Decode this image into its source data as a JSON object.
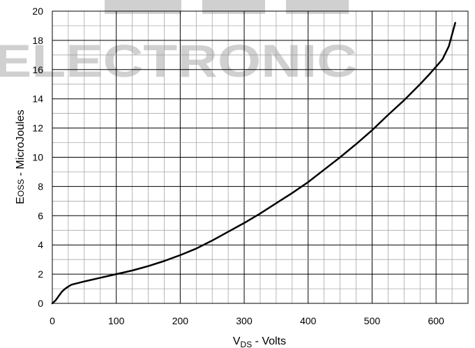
{
  "watermark": {
    "text": "ELECTRONIC",
    "color": "#d0d0d0"
  },
  "chart_data": {
    "type": "line",
    "title": "",
    "xlabel": {
      "main": "V",
      "sub": "DS",
      "suffix": " - Volts"
    },
    "ylabel": {
      "main": "E",
      "sub": "OSS",
      "suffix": " - MicroJoules"
    },
    "xlim": [
      0,
      650
    ],
    "ylim": [
      0,
      20
    ],
    "xticks": [
      0,
      100,
      200,
      300,
      400,
      500,
      600
    ],
    "yticks": [
      0,
      2,
      4,
      6,
      8,
      10,
      12,
      14,
      16,
      18,
      20
    ],
    "grid": true,
    "grid_minor_x": 25,
    "grid_minor_y": 1,
    "legend": "none",
    "line_color": "#000000",
    "series": [
      {
        "x": [
          0,
          5,
          10,
          15,
          20,
          25,
          30,
          50,
          75,
          100,
          125,
          150,
          175,
          200,
          225,
          250,
          275,
          300,
          325,
          350,
          375,
          400,
          425,
          450,
          475,
          500,
          525,
          550,
          575,
          590,
          600,
          610,
          620,
          625,
          630
        ],
        "values": [
          0,
          0.2,
          0.5,
          0.8,
          1.0,
          1.15,
          1.28,
          1.5,
          1.75,
          2.0,
          2.25,
          2.55,
          2.9,
          3.3,
          3.75,
          4.3,
          4.9,
          5.5,
          6.15,
          6.85,
          7.55,
          8.3,
          9.15,
          10.0,
          10.9,
          11.85,
          12.9,
          13.9,
          15.0,
          15.7,
          16.2,
          16.7,
          17.6,
          18.4,
          19.2
        ]
      }
    ]
  }
}
